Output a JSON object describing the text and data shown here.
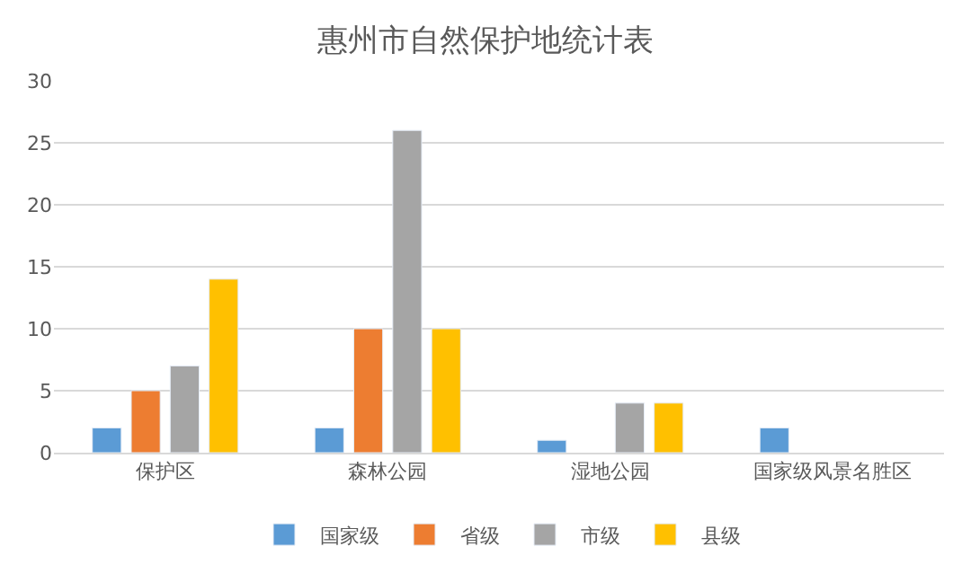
{
  "chart_data": {
    "type": "bar",
    "title": "惠州市自然保护地统计表",
    "categories": [
      "保护区",
      "森林公园",
      "湿地公园",
      "国家级风景名胜区"
    ],
    "series": [
      {
        "name": "国家级",
        "color": "#5b9bd5",
        "values": [
          2,
          2,
          1,
          2
        ]
      },
      {
        "name": "省级",
        "color": "#ed7d31",
        "values": [
          5,
          10,
          null,
          null
        ]
      },
      {
        "name": "市级",
        "color": "#a5a5a5",
        "values": [
          7,
          26,
          4,
          null
        ]
      },
      {
        "name": "县级",
        "color": "#ffc000",
        "values": [
          14,
          10,
          4,
          null
        ]
      }
    ],
    "ylim": [
      0,
      30
    ],
    "yticks": [
      0,
      5,
      10,
      15,
      20,
      25,
      30
    ],
    "grid": "y",
    "legend": "bottom"
  }
}
